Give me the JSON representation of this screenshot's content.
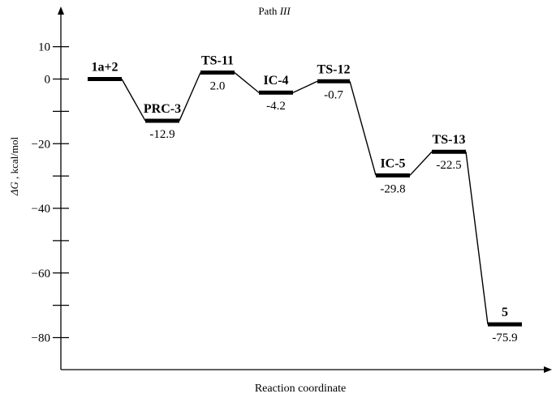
{
  "chart_data": {
    "type": "line",
    "title": "Path",
    "title_italic": "III",
    "xlabel": "Reaction coordinate",
    "ylabel_symbol": "ΔG",
    "ylabel_rest": ", kcal/mol",
    "ylim": [
      -90,
      16
    ],
    "yticks_major": [
      10,
      0,
      -20,
      -40,
      -60,
      -80
    ],
    "ytick_labels": [
      "10",
      "0",
      "−20",
      "−40",
      "−60",
      "−80"
    ],
    "yticks_minor": [
      -10,
      -30,
      -50,
      -70
    ],
    "grid": false,
    "states": [
      {
        "name": "1a+2",
        "value": 0.0,
        "label": "",
        "name_pos": "above"
      },
      {
        "name": "PRC-3",
        "value": -12.9,
        "label": "-12.9",
        "name_pos": "above"
      },
      {
        "name": "TS-11",
        "value": 2.0,
        "label": "2.0",
        "name_pos": "above"
      },
      {
        "name": "IC-4",
        "value": -4.2,
        "label": "-4.2",
        "name_pos": "above"
      },
      {
        "name": "TS-12",
        "value": -0.7,
        "label": "-0.7",
        "name_pos": "above"
      },
      {
        "name": "IC-5",
        "value": -29.8,
        "label": "-29.8",
        "name_pos": "above"
      },
      {
        "name": "TS-13",
        "value": -22.5,
        "label": "-22.5",
        "name_pos": "above"
      },
      {
        "name": "5",
        "value": -75.9,
        "label": "-75.9",
        "name_pos": "above"
      }
    ]
  }
}
